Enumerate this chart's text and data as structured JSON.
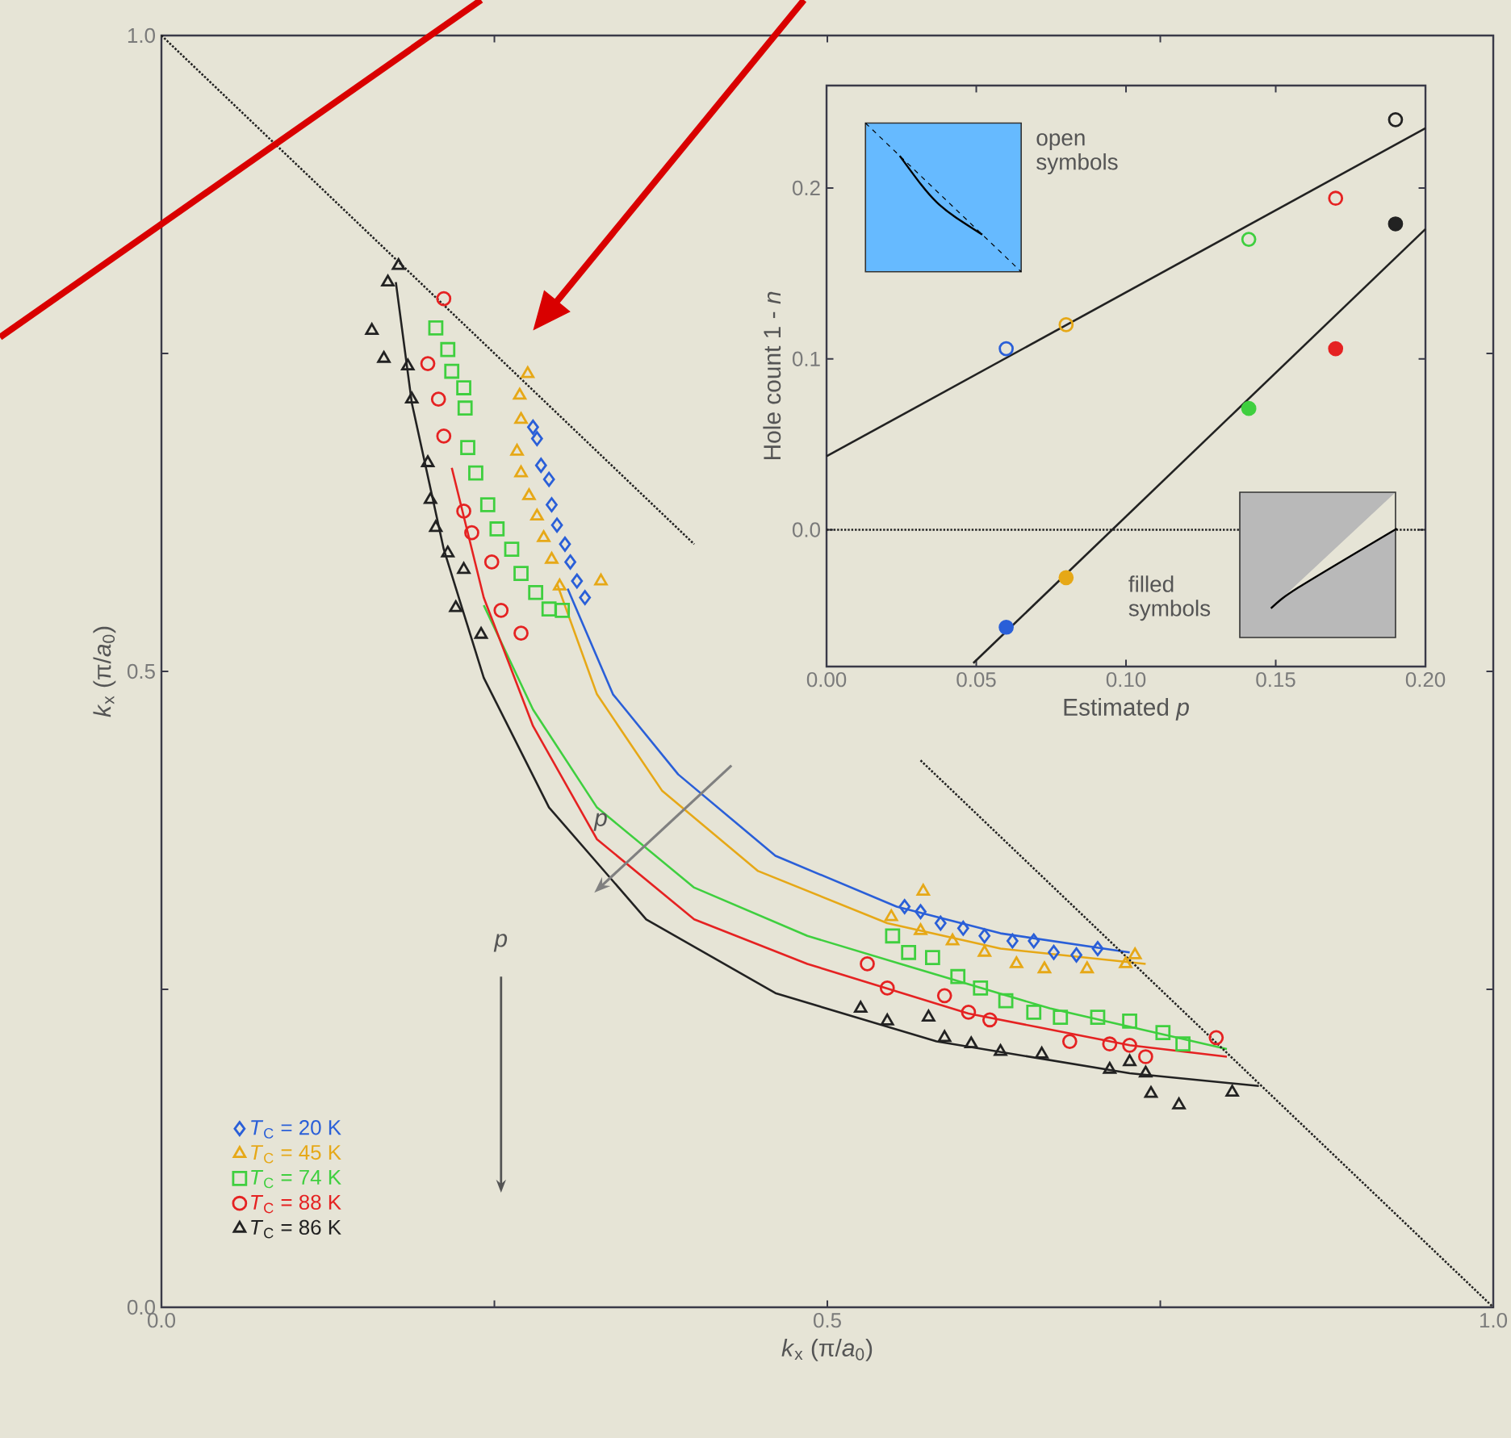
{
  "chart_data": [
    {
      "type": "scatter",
      "xlabel": "*k*$_{x}$ (π/*a*$_{0}$)",
      "ylabel": "*k*$_{x}$ (π/*a*$_{0}$)",
      "xlim": [
        0,
        1
      ],
      "ylim": [
        0,
        1
      ],
      "xticks": [
        {
          "value": 0,
          "label": "0.0"
        },
        {
          "value": 0.25,
          "label": null
        },
        {
          "value": 0.5,
          "label": "0.5"
        },
        {
          "value": 0.75,
          "label": null
        },
        {
          "value": 1,
          "label": "1.0"
        }
      ],
      "yticks": [
        {
          "value": 0,
          "label": "0.0"
        },
        {
          "value": 0.25,
          "label": null
        },
        {
          "value": 0.5,
          "label": "0.5"
        },
        {
          "value": 0.75,
          "label": null
        },
        {
          "value": 1,
          "label": "1.0"
        }
      ],
      "legend": "bottom left",
      "annotations": [
        "*p*",
        "*p*"
      ],
      "series": [
        {
          "name": "*T*$_{C}$ = 20 K",
          "color": "#2a5fd8",
          "marker": "diamond",
          "x": [
            0.279,
            0.282,
            0.285,
            0.291,
            0.293,
            0.297,
            0.303,
            0.307,
            0.312,
            0.318,
            0.558,
            0.57,
            0.585,
            0.602,
            0.618,
            0.639,
            0.655,
            0.67,
            0.687,
            0.703
          ],
          "values": [
            0.692,
            0.683,
            0.662,
            0.651,
            0.631,
            0.615,
            0.6,
            0.586,
            0.571,
            0.558,
            0.315,
            0.311,
            0.302,
            0.298,
            0.292,
            0.288,
            0.288,
            0.279,
            0.277,
            0.282
          ]
        },
        {
          "name": "*T*$_{C}$ = 45 K",
          "color": "#e6a817",
          "marker": "triangle",
          "x": [
            0.275,
            0.269,
            0.27,
            0.267,
            0.27,
            0.276,
            0.282,
            0.287,
            0.293,
            0.299,
            0.33,
            0.572,
            0.548,
            0.57,
            0.594,
            0.618,
            0.642,
            0.663,
            0.695,
            0.724,
            0.731
          ],
          "values": [
            0.734,
            0.717,
            0.698,
            0.673,
            0.656,
            0.638,
            0.622,
            0.605,
            0.588,
            0.567,
            0.571,
            0.327,
            0.307,
            0.296,
            0.288,
            0.279,
            0.27,
            0.266,
            0.266,
            0.27,
            0.277
          ]
        },
        {
          "name": "*T*$_{C}$ = 74 K",
          "color": "#3fcf3f",
          "marker": "square",
          "x": [
            0.206,
            0.215,
            0.218,
            0.227,
            0.228,
            0.23,
            0.236,
            0.245,
            0.252,
            0.263,
            0.27,
            0.281,
            0.291,
            0.301,
            0.549,
            0.561,
            0.579,
            0.598,
            0.615,
            0.634,
            0.655,
            0.675,
            0.703,
            0.727,
            0.752,
            0.767
          ],
          "values": [
            0.77,
            0.753,
            0.736,
            0.723,
            0.707,
            0.676,
            0.656,
            0.631,
            0.612,
            0.596,
            0.577,
            0.562,
            0.549,
            0.548,
            0.292,
            0.279,
            0.275,
            0.26,
            0.251,
            0.241,
            0.232,
            0.228,
            0.228,
            0.225,
            0.216,
            0.207
          ]
        },
        {
          "name": "*T*$_{C}$ = 88 K",
          "color": "#e52222",
          "marker": "circle",
          "x": [
            0.212,
            0.2,
            0.208,
            0.212,
            0.227,
            0.233,
            0.248,
            0.255,
            0.27,
            0.53,
            0.545,
            0.588,
            0.606,
            0.622,
            0.682,
            0.712,
            0.727,
            0.739,
            0.792
          ],
          "values": [
            0.793,
            0.742,
            0.714,
            0.685,
            0.626,
            0.609,
            0.586,
            0.548,
            0.53,
            0.27,
            0.251,
            0.245,
            0.232,
            0.226,
            0.209,
            0.207,
            0.206,
            0.197,
            0.212
          ]
        },
        {
          "name": "*T*$_{C}$ = 86 K",
          "color": "#222222",
          "marker": "triangle",
          "x": [
            0.178,
            0.17,
            0.158,
            0.167,
            0.185,
            0.188,
            0.2,
            0.202,
            0.206,
            0.215,
            0.227,
            0.221,
            0.24,
            0.525,
            0.545,
            0.576,
            0.588,
            0.608,
            0.63,
            0.661,
            0.712,
            0.727,
            0.739,
            0.743,
            0.764,
            0.804
          ],
          "values": [
            0.819,
            0.806,
            0.768,
            0.746,
            0.74,
            0.714,
            0.664,
            0.635,
            0.613,
            0.593,
            0.58,
            0.55,
            0.529,
            0.235,
            0.225,
            0.228,
            0.212,
            0.207,
            0.201,
            0.199,
            0.187,
            0.193,
            0.184,
            0.168,
            0.159,
            0.169
          ]
        },
        {
          "type": "line",
          "color": "#2a5fd8",
          "x": [
            0.305,
            0.339,
            0.388,
            0.461,
            0.552,
            0.63,
            0.727
          ],
          "values": [
            0.565,
            0.482,
            0.419,
            0.355,
            0.315,
            0.294,
            0.279
          ]
        },
        {
          "type": "line",
          "color": "#e6a817",
          "x": [
            0.297,
            0.327,
            0.376,
            0.448,
            0.545,
            0.63,
            0.739
          ],
          "values": [
            0.569,
            0.482,
            0.406,
            0.343,
            0.302,
            0.282,
            0.27
          ]
        },
        {
          "type": "line",
          "color": "#3fcf3f",
          "x": [
            0.242,
            0.279,
            0.327,
            0.4,
            0.485,
            0.558,
            0.667,
            0.8
          ],
          "values": [
            0.552,
            0.47,
            0.393,
            0.33,
            0.292,
            0.269,
            0.235,
            0.203
          ]
        },
        {
          "type": "line",
          "color": "#e52222",
          "x": [
            0.218,
            0.242,
            0.279,
            0.327,
            0.4,
            0.485,
            0.606,
            0.727,
            0.8
          ],
          "values": [
            0.66,
            0.558,
            0.457,
            0.368,
            0.305,
            0.27,
            0.231,
            0.206,
            0.197
          ]
        },
        {
          "type": "line",
          "color": "#222222",
          "x": [
            0.176,
            0.188,
            0.212,
            0.242,
            0.291,
            0.364,
            0.461,
            0.582,
            0.727,
            0.824
          ],
          "values": [
            0.806,
            0.711,
            0.596,
            0.495,
            0.393,
            0.305,
            0.247,
            0.209,
            0.184,
            0.174
          ]
        },
        {
          "type": "line",
          "color": "#222222",
          "line_style": "dotted",
          "x": [
            0.0,
            0.4,
            0.5,
            0.57,
            1.0
          ],
          "values": [
            1.0,
            0.6,
            null,
            0.43,
            0.0
          ]
        }
      ]
    },
    {
      "type": "scatter",
      "xlabel": "Estimated *p*",
      "ylabel": "Hole count 1 - *n*",
      "xlim": [
        0,
        0.2
      ],
      "ylim": [
        -0.08,
        0.26
      ],
      "xticks": [
        {
          "value": 0,
          "label": "0.00"
        },
        {
          "value": 0.05,
          "label": "0.05"
        },
        {
          "value": 0.1,
          "label": "0.10"
        },
        {
          "value": 0.15,
          "label": "0.15"
        },
        {
          "value": 0.2,
          "label": "0.20"
        }
      ],
      "yticks": [
        {
          "value": 0,
          "label": "0.0"
        },
        {
          "value": 0.1,
          "label": "0.1"
        },
        {
          "value": 0.2,
          "label": "0.2"
        }
      ],
      "annotations": [
        "open symbols",
        "filled symbols"
      ],
      "ref_lines": [
        {
          "axis": "y",
          "value": 0,
          "color": "#222222",
          "line_style": "dotted"
        }
      ],
      "series": [
        {
          "marker": "circle",
          "x": [
            0.06,
            0.08,
            0.141,
            0.17,
            0.19
          ],
          "values": [
            0.106,
            0.12,
            0.17,
            0.194,
            0.24
          ],
          "colors": [
            "#2a5fd8",
            "#e6a817",
            "#3fcf3f",
            "#e52222",
            "#222222"
          ]
        },
        {
          "marker": "circle",
          "x": [
            0.06,
            0.08,
            0.141,
            0.17,
            0.19
          ],
          "values": [
            -0.057,
            -0.028,
            0.071,
            0.106,
            0.179
          ],
          "colors": [
            "#2a5fd8",
            "#e6a817",
            "#3fcf3f",
            "#e52222",
            "#222222"
          ]
        },
        {
          "type": "line",
          "color": "#222222",
          "x": [
            0.0,
            0.2
          ],
          "values": [
            0.043,
            0.235
          ]
        },
        {
          "type": "line",
          "color": "#222222",
          "x": [
            0.049,
            0.2
          ],
          "values": [
            -0.078,
            0.176
          ]
        }
      ]
    }
  ]
}
